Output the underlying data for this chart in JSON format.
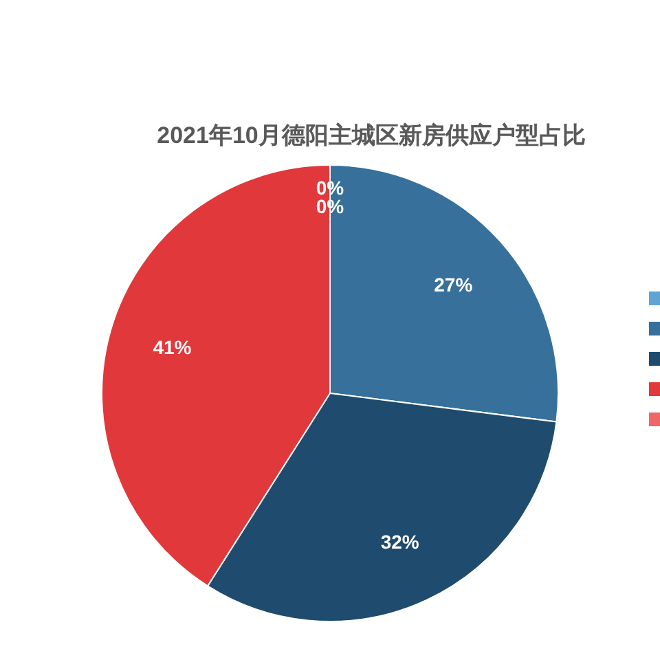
{
  "chart_data": {
    "type": "pie",
    "title": "2021年10月德阳主城区新房供应户型占比",
    "categories": [
      null,
      null,
      null,
      null,
      null
    ],
    "values": [
      0,
      27,
      32,
      41,
      0
    ],
    "colors": [
      "#5fa4d3",
      "#36709b",
      "#1e4b6e",
      "#e1383b",
      "#ef6666"
    ],
    "value_labels": [
      "0%",
      "27%",
      "32%",
      "41%",
      "0%"
    ]
  }
}
